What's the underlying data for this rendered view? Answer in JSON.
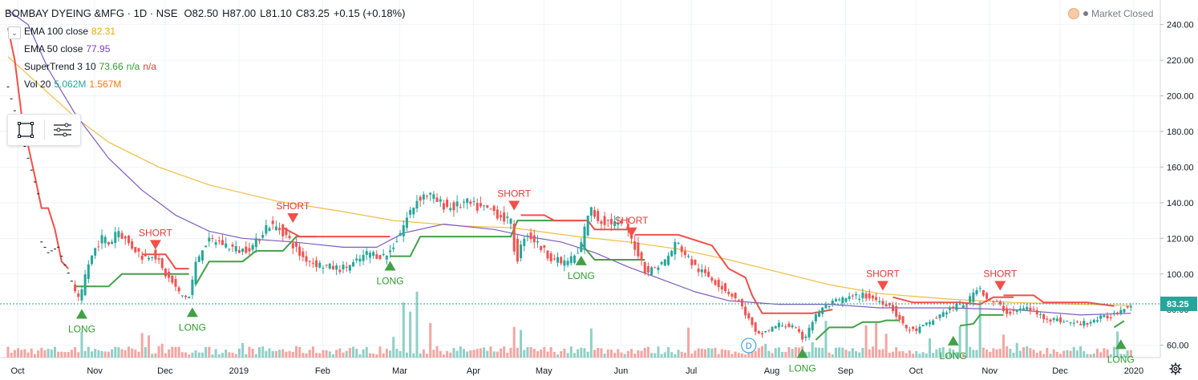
{
  "header": {
    "symbol": "BOMBAY DYEING &MFG · 1D · NSE",
    "o_label": "O",
    "o_value": "82.50",
    "h_label": "H",
    "h_value": "87.00",
    "l_label": "L",
    "l_value": "81.10",
    "c_label": "C",
    "c_value": "83.25",
    "change": "+0.15 (+0.18%)",
    "market_status": "Market Closed"
  },
  "indicators": [
    {
      "label": "EMA 100 close",
      "values": [
        "82.31"
      ],
      "colors": [
        "#f2a900"
      ]
    },
    {
      "label": "EMA 50 close",
      "values": [
        "77.95"
      ],
      "colors": [
        "#7b3fbf"
      ]
    },
    {
      "label": "SuperTrend 3 10",
      "values": [
        "73.66",
        "n/a",
        "n/a"
      ],
      "colors": [
        "#2e9d2e",
        "#2e9d2e",
        "#e53935"
      ]
    },
    {
      "label": "Vol 20",
      "values": [
        "5.062M",
        "1.567M"
      ],
      "colors": [
        "#26a69a",
        "#f57c00"
      ]
    }
  ],
  "colors": {
    "up": "#26a69a",
    "down": "#ef5350",
    "vol_up": "#8fd0c6",
    "vol_down": "#f4a5a2",
    "ema100": "#f2bd42",
    "ema50": "#7b5bbf",
    "st_up": "#43a047",
    "st_down": "#f0504a",
    "price_tag": "#26a69a"
  },
  "chart_data": {
    "type": "candlestick",
    "ylim": [
      50,
      245
    ],
    "y_ticks": [
      "240.00",
      "220.00",
      "200.00",
      "180.00",
      "160.00",
      "140.00",
      "120.00",
      "100.00",
      "80.00",
      "60.00"
    ],
    "x_ticks": [
      "Oct",
      "Nov",
      "Dec",
      "2019",
      "Feb",
      "Mar",
      "Apr",
      "May",
      "Jun",
      "Jul",
      "Aug",
      "Sep",
      "Oct",
      "Nov",
      "Dec",
      "2020"
    ],
    "last_price": "83.25",
    "ema100": [
      [
        0,
        222
      ],
      [
        10,
        205
      ],
      [
        20,
        188
      ],
      [
        30,
        174
      ],
      [
        45,
        160
      ],
      [
        60,
        150
      ],
      [
        80,
        141
      ],
      [
        100,
        135
      ],
      [
        115,
        130
      ],
      [
        135,
        127
      ],
      [
        150,
        126
      ],
      [
        170,
        121
      ],
      [
        185,
        118
      ],
      [
        200,
        114
      ],
      [
        215,
        108
      ],
      [
        230,
        101
      ],
      [
        245,
        94
      ],
      [
        260,
        89
      ],
      [
        280,
        86
      ],
      [
        300,
        84
      ],
      [
        320,
        83
      ],
      [
        335,
        82.31
      ]
    ],
    "ema50": [
      [
        0,
        248
      ],
      [
        6,
        240
      ],
      [
        12,
        215
      ],
      [
        20,
        190
      ],
      [
        30,
        165
      ],
      [
        40,
        147
      ],
      [
        50,
        133
      ],
      [
        60,
        124
      ],
      [
        70,
        120
      ],
      [
        85,
        118
      ],
      [
        100,
        115
      ],
      [
        110,
        115
      ],
      [
        118,
        123
      ],
      [
        130,
        128
      ],
      [
        145,
        125
      ],
      [
        155,
        121
      ],
      [
        165,
        118
      ],
      [
        175,
        112
      ],
      [
        185,
        104
      ],
      [
        195,
        97
      ],
      [
        205,
        90
      ],
      [
        215,
        85
      ],
      [
        230,
        83
      ],
      [
        245,
        83
      ],
      [
        260,
        81
      ],
      [
        280,
        81
      ],
      [
        300,
        80
      ],
      [
        320,
        77
      ],
      [
        335,
        77.95
      ]
    ],
    "supertrend": [
      {
        "trend": "down",
        "points": [
          [
            0,
            238
          ],
          [
            2,
            220
          ],
          [
            4,
            190
          ],
          [
            6,
            172
          ],
          [
            8,
            155
          ],
          [
            10,
            137
          ],
          [
            12,
            137
          ],
          [
            14,
            125
          ],
          [
            16,
            107
          ],
          [
            18,
            103
          ]
        ]
      },
      {
        "trend": "up",
        "points": [
          [
            20,
            93
          ],
          [
            30,
            93
          ],
          [
            34,
            100
          ],
          [
            48,
            100
          ],
          [
            54,
            100
          ]
        ]
      },
      {
        "trend": "down",
        "points": [
          [
            40,
            111
          ],
          [
            47,
            111
          ],
          [
            50,
            103
          ],
          [
            54,
            103
          ]
        ]
      },
      {
        "trend": "up",
        "points": [
          [
            56,
            94
          ],
          [
            60,
            107
          ],
          [
            70,
            107
          ],
          [
            74,
            113
          ],
          [
            82,
            113
          ],
          [
            86,
            121
          ],
          [
            92,
            121
          ]
        ]
      },
      {
        "trend": "down",
        "points": [
          [
            82,
            126
          ],
          [
            87,
            121
          ],
          [
            114,
            121
          ]
        ]
      },
      {
        "trend": "up",
        "points": [
          [
            114,
            110
          ],
          [
            120,
            110
          ],
          [
            123,
            121
          ],
          [
            150,
            121
          ],
          [
            152,
            130
          ],
          [
            172,
            130
          ]
        ]
      },
      {
        "trend": "down",
        "points": [
          [
            153,
            133
          ],
          [
            160,
            133
          ],
          [
            163,
            130
          ],
          [
            173,
            130
          ],
          [
            175,
            125
          ],
          [
            185,
            125
          ]
        ]
      },
      {
        "trend": "up",
        "points": [
          [
            171,
            117
          ],
          [
            175,
            108
          ],
          [
            190,
            108
          ]
        ]
      },
      {
        "trend": "down",
        "points": [
          [
            187,
            122
          ],
          [
            200,
            122
          ],
          [
            210,
            116
          ],
          [
            215,
            103
          ],
          [
            220,
            98
          ],
          [
            222,
            88
          ],
          [
            225,
            78
          ],
          [
            240,
            78
          ],
          [
            246,
            80
          ]
        ]
      },
      {
        "trend": "up",
        "points": [
          [
            241,
            63
          ],
          [
            245,
            70
          ],
          [
            252,
            70
          ],
          [
            255,
            73
          ],
          [
            260,
            73
          ],
          [
            262,
            74
          ],
          [
            266,
            74
          ]
        ]
      },
      {
        "trend": "down",
        "points": [
          [
            264,
            87
          ],
          [
            270,
            84
          ],
          [
            275,
            84
          ],
          [
            284,
            84
          ],
          [
            290,
            83
          ],
          [
            294,
            87
          ],
          [
            300,
            87
          ]
        ]
      },
      {
        "trend": "up",
        "points": [
          [
            284,
            71
          ],
          [
            288,
            72
          ],
          [
            290,
            77
          ],
          [
            297,
            77
          ]
        ]
      },
      {
        "trend": "down",
        "points": [
          [
            297,
            88
          ],
          [
            306,
            88
          ],
          [
            309,
            84
          ],
          [
            322,
            84
          ],
          [
            330,
            82
          ]
        ]
      },
      {
        "trend": "up",
        "points": [
          [
            330,
            70
          ],
          [
            333,
            73.66
          ]
        ]
      }
    ],
    "signals": [
      {
        "type": "LONG",
        "bar": 22,
        "price": 83
      },
      {
        "type": "SHORT",
        "bar": 44,
        "price": 111
      },
      {
        "type": "LONG",
        "bar": 55,
        "price": 84
      },
      {
        "type": "SHORT",
        "bar": 85,
        "price": 126
      },
      {
        "type": "LONG",
        "bar": 114,
        "price": 110
      },
      {
        "type": "SHORT",
        "bar": 151,
        "price": 133
      },
      {
        "type": "LONG",
        "bar": 171,
        "price": 113
      },
      {
        "type": "SHORT",
        "bar": 186,
        "price": 118
      },
      {
        "type": "LONG",
        "bar": 237,
        "price": 61
      },
      {
        "type": "SHORT",
        "bar": 261,
        "price": 88
      },
      {
        "type": "LONG",
        "bar": 282,
        "price": 68
      },
      {
        "type": "SHORT",
        "bar": 296,
        "price": 88
      },
      {
        "type": "LONG",
        "bar": 332,
        "price": 66
      }
    ],
    "event_marker": "D",
    "price_path": [
      [
        0,
        205
      ],
      [
        3,
        185
      ],
      [
        6,
        165
      ],
      [
        9,
        145
      ],
      [
        10,
        118
      ],
      [
        12,
        112
      ],
      [
        15,
        115
      ],
      [
        17,
        105
      ],
      [
        19,
        96
      ],
      [
        20,
        91
      ],
      [
        22,
        84
      ],
      [
        24,
        103
      ],
      [
        27,
        116
      ],
      [
        29,
        121
      ],
      [
        31,
        116
      ],
      [
        33,
        126
      ],
      [
        36,
        118
      ],
      [
        39,
        113
      ],
      [
        41,
        109
      ],
      [
        44,
        112
      ],
      [
        47,
        101
      ],
      [
        50,
        94
      ],
      [
        52,
        88
      ],
      [
        55,
        87
      ],
      [
        56,
        103
      ],
      [
        59,
        117
      ],
      [
        62,
        119
      ],
      [
        66,
        116
      ],
      [
        70,
        113
      ],
      [
        74,
        116
      ],
      [
        78,
        128
      ],
      [
        82,
        125
      ],
      [
        85,
        118
      ],
      [
        88,
        110
      ],
      [
        92,
        106
      ],
      [
        96,
        104
      ],
      [
        100,
        103
      ],
      [
        104,
        106
      ],
      [
        108,
        112
      ],
      [
        112,
        110
      ],
      [
        114,
        111
      ],
      [
        117,
        121
      ],
      [
        120,
        133
      ],
      [
        123,
        143
      ],
      [
        126,
        145
      ],
      [
        129,
        140
      ],
      [
        133,
        137
      ],
      [
        137,
        140
      ],
      [
        141,
        137
      ],
      [
        145,
        136
      ],
      [
        148,
        132
      ],
      [
        151,
        128
      ],
      [
        152,
        105
      ],
      [
        155,
        124
      ],
      [
        158,
        118
      ],
      [
        162,
        110
      ],
      [
        166,
        106
      ],
      [
        169,
        109
      ],
      [
        171,
        112
      ],
      [
        174,
        137
      ],
      [
        177,
        130
      ],
      [
        181,
        129
      ],
      [
        185,
        125
      ],
      [
        188,
        114
      ],
      [
        191,
        101
      ],
      [
        194,
        104
      ],
      [
        197,
        108
      ],
      [
        200,
        118
      ],
      [
        203,
        110
      ],
      [
        206,
        103
      ],
      [
        210,
        98
      ],
      [
        214,
        92
      ],
      [
        218,
        86
      ],
      [
        220,
        80
      ],
      [
        222,
        73
      ],
      [
        224,
        65
      ],
      [
        227,
        68
      ],
      [
        231,
        72
      ],
      [
        235,
        70
      ],
      [
        238,
        63
      ],
      [
        240,
        72
      ],
      [
        243,
        80
      ],
      [
        247,
        84
      ],
      [
        250,
        86
      ],
      [
        253,
        87
      ],
      [
        256,
        88
      ],
      [
        259,
        86
      ],
      [
        262,
        84
      ],
      [
        264,
        82
      ],
      [
        266,
        76
      ],
      [
        268,
        70
      ],
      [
        271,
        68
      ],
      [
        275,
        72
      ],
      [
        278,
        76
      ],
      [
        281,
        80
      ],
      [
        284,
        82
      ],
      [
        287,
        84
      ],
      [
        290,
        94
      ],
      [
        293,
        85
      ],
      [
        296,
        83
      ],
      [
        299,
        78
      ],
      [
        302,
        80
      ],
      [
        305,
        81
      ],
      [
        308,
        77
      ],
      [
        311,
        75
      ],
      [
        314,
        74
      ],
      [
        317,
        73
      ],
      [
        320,
        72
      ],
      [
        323,
        73
      ],
      [
        326,
        75
      ],
      [
        329,
        76
      ],
      [
        331,
        78
      ],
      [
        335,
        83.25
      ]
    ],
    "volume_spikes": [
      [
        22,
        3.4
      ],
      [
        40,
        3.2
      ],
      [
        42,
        2.9
      ],
      [
        46,
        1.8
      ],
      [
        60,
        1.4
      ],
      [
        70,
        1.9
      ],
      [
        115,
        2.7
      ],
      [
        118,
        7.2
      ],
      [
        120,
        6.0
      ],
      [
        122,
        8.6
      ],
      [
        126,
        4.5
      ],
      [
        151,
        4.0
      ],
      [
        153,
        3.6
      ],
      [
        174,
        3.8
      ],
      [
        203,
        3.9
      ],
      [
        226,
        1.8
      ],
      [
        240,
        2.0
      ],
      [
        244,
        4.8
      ],
      [
        256,
        4.2
      ],
      [
        259,
        4.5
      ],
      [
        262,
        3.1
      ],
      [
        275,
        2.5
      ],
      [
        284,
        4.1
      ],
      [
        286,
        7.1
      ],
      [
        290,
        7.4
      ],
      [
        297,
        3.0
      ],
      [
        301,
        1.9
      ],
      [
        331,
        3.4
      ]
    ]
  }
}
